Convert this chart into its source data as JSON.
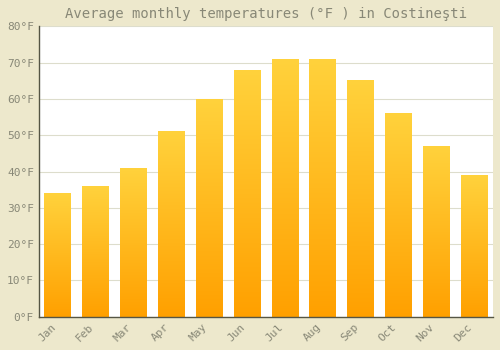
{
  "months": [
    "Jan",
    "Feb",
    "Mar",
    "Apr",
    "May",
    "Jun",
    "Jul",
    "Aug",
    "Sep",
    "Oct",
    "Nov",
    "Dec"
  ],
  "values": [
    34,
    36,
    41,
    51,
    60,
    68,
    71,
    71,
    65,
    56,
    47,
    39
  ],
  "title": "Average monthly temperatures (°F ) in Costineşti",
  "bar_color_top": "#FFCC44",
  "bar_color_bottom": "#FFA000",
  "figure_bg": "#EDE8CC",
  "axes_bg": "#FFFFFF",
  "grid_color": "#DDDDCC",
  "text_color": "#888877",
  "spine_color": "#555544",
  "ylim": [
    0,
    80
  ],
  "yticks": [
    0,
    10,
    20,
    30,
    40,
    50,
    60,
    70,
    80
  ],
  "ytick_labels": [
    "0°F",
    "10°F",
    "20°F",
    "30°F",
    "40°F",
    "50°F",
    "60°F",
    "70°F",
    "80°F"
  ],
  "title_fontsize": 10,
  "tick_fontsize": 8,
  "figsize": [
    5.0,
    3.5
  ],
  "dpi": 100
}
